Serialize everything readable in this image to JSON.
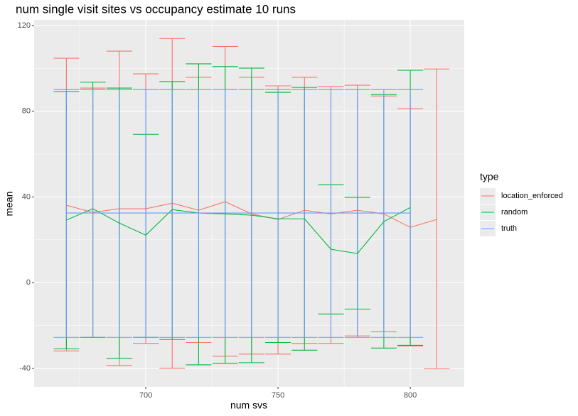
{
  "chart_data": {
    "type": "errorbar_line",
    "title": "num single visit sites vs occupancy estimate 10 runs",
    "x_label": "num svs",
    "y_label": "mean",
    "legend_title": "type",
    "xlim": [
      657.8,
      820.4
    ],
    "ylim": [
      -48.6,
      122.6
    ],
    "xticks": [
      700,
      750,
      800
    ],
    "yticks": [
      -40,
      0,
      40,
      80,
      120
    ],
    "grid": true,
    "legend_position": "right",
    "series": [
      {
        "name": "location_enforced",
        "color": "#F8766D",
        "x": [
          670,
          680,
          690,
          700,
          710,
          720,
          730,
          740,
          750,
          760,
          770,
          780,
          790,
          800,
          810
        ],
        "values": [
          36.1,
          32.8,
          34.5,
          34.5,
          37.1,
          33.8,
          37.8,
          32.1,
          29.5,
          33.8,
          32.1,
          33.8,
          32.1,
          25.8,
          29.5
        ],
        "lower": [
          -31.8,
          -25.5,
          -38.6,
          -28.3,
          -39.9,
          -27.9,
          -34.3,
          -33.3,
          -33.3,
          -28.3,
          -28.3,
          -24.8,
          -22.9,
          -29.5,
          -40.2
        ],
        "upper": [
          104.7,
          90.8,
          108.0,
          97.4,
          113.9,
          95.8,
          110.2,
          95.8,
          91.8,
          95.8,
          91.5,
          92.1,
          87.1,
          81.2,
          99.7
        ]
      },
      {
        "name": "random",
        "color": "#00BA38",
        "x": [
          670,
          680,
          690,
          700,
          710,
          720,
          730,
          740,
          750,
          760,
          770,
          780,
          790,
          800
        ],
        "values": [
          29.2,
          34.5,
          27.8,
          22.2,
          34.1,
          32.5,
          32.1,
          31.5,
          29.8,
          29.8,
          15.6,
          13.6,
          28.5,
          35.1
        ],
        "lower": [
          -30.8,
          -25.5,
          -35.3,
          -25.5,
          -26.5,
          -38.3,
          -37.6,
          -37.3,
          -27.9,
          -31.5,
          -14.6,
          -12.3,
          -30.5,
          -29.2
        ],
        "upper": [
          89.2,
          93.5,
          90.8,
          69.2,
          93.8,
          102.1,
          100.8,
          100.1,
          88.8,
          91.1,
          45.7,
          39.8,
          87.8,
          99.1
        ]
      },
      {
        "name": "truth",
        "color": "#619CFF",
        "x": [
          670,
          680,
          690,
          700,
          710,
          720,
          730,
          740,
          750,
          760,
          770,
          780,
          790,
          800
        ],
        "values": [
          32.5,
          32.5,
          32.5,
          32.5,
          32.5,
          32.5,
          32.5,
          32.5,
          32.5,
          32.5,
          32.5,
          32.5,
          32.5,
          32.5
        ],
        "lower": [
          -25.5,
          -25.5,
          -25.5,
          -25.5,
          -25.5,
          -25.5,
          -25.5,
          -25.5,
          -25.5,
          -25.5,
          -25.5,
          -25.5,
          -25.5,
          -25.5
        ],
        "upper": [
          90.1,
          90.1,
          90.1,
          90.1,
          90.1,
          90.1,
          90.1,
          90.1,
          90.1,
          90.1,
          90.1,
          90.1,
          90.1,
          90.1
        ]
      }
    ]
  }
}
